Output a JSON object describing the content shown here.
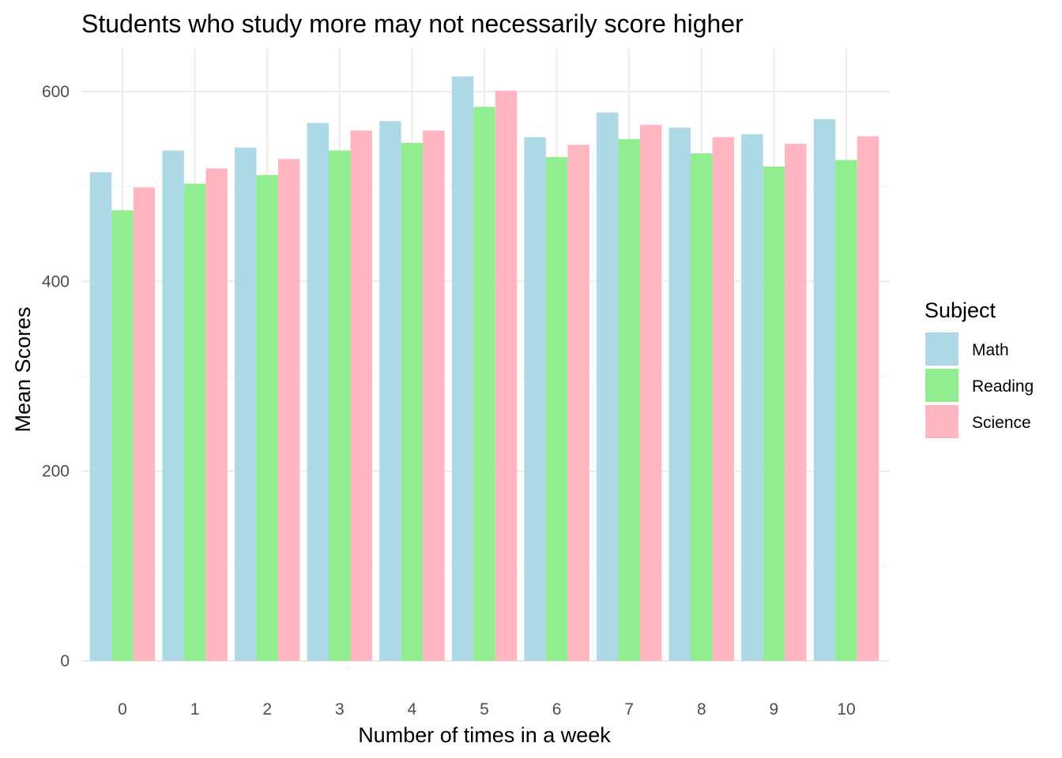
{
  "chart_data": {
    "type": "bar",
    "title": "Students who study more may not necessarily score higher",
    "xlabel": "Number of times in a week",
    "ylabel": "Mean Scores",
    "categories": [
      "0",
      "1",
      "2",
      "3",
      "4",
      "5",
      "6",
      "7",
      "8",
      "9",
      "10"
    ],
    "ylim": [
      0,
      645
    ],
    "yticks": [
      0,
      200,
      400,
      600
    ],
    "grid": true,
    "legend": {
      "title": "Subject",
      "placement": "right"
    },
    "series": [
      {
        "name": "Math",
        "color": "#add8e6",
        "values": [
          515,
          538,
          541,
          567,
          569,
          616,
          552,
          578,
          562,
          555,
          571
        ]
      },
      {
        "name": "Reading",
        "color": "#90ee90",
        "values": [
          475,
          503,
          512,
          538,
          546,
          584,
          531,
          550,
          535,
          521,
          528
        ]
      },
      {
        "name": "Science",
        "color": "#ffb6c1",
        "values": [
          499,
          519,
          529,
          559,
          559,
          601,
          544,
          565,
          552,
          545,
          553
        ]
      }
    ]
  }
}
